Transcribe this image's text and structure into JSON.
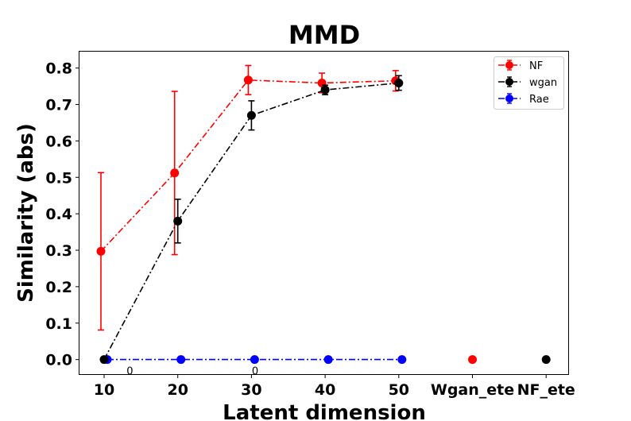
{
  "chart_data": {
    "type": "line",
    "title": "MMD",
    "xlabel": "Latent dimension",
    "ylabel": "Similarity (abs)",
    "categories": [
      "10",
      "20",
      "30",
      "40",
      "50",
      "Wgan_ete",
      "NF_ete"
    ],
    "yticks": [
      "0.0",
      "0.1",
      "0.2",
      "0.3",
      "0.4",
      "0.5",
      "0.6",
      "0.7",
      "0.8"
    ],
    "ylim": [
      -0.04,
      0.845
    ],
    "legend_position": "top-right",
    "grid": false,
    "series": [
      {
        "name": "NF",
        "color": "#ff0000",
        "linestyle": "dash-dot",
        "x": [
          10,
          20,
          30,
          40,
          50
        ],
        "y": [
          0.297,
          0.512,
          0.767,
          0.759,
          0.765
        ],
        "yerr": [
          0.216,
          0.224,
          0.04,
          0.027,
          0.028
        ]
      },
      {
        "name": "wgan",
        "color": "#000000",
        "linestyle": "dash-dot",
        "x": [
          10,
          20,
          30,
          40,
          50
        ],
        "y": [
          0.0,
          0.38,
          0.67,
          0.74,
          0.759
        ],
        "yerr": [
          0.0,
          0.06,
          0.04,
          0.013,
          0.02
        ]
      },
      {
        "name": "Rae",
        "color": "#0000ff",
        "linestyle": "dash-dot",
        "x": [
          10,
          20,
          30,
          40,
          50
        ],
        "y": [
          0.0,
          0.0,
          0.0,
          0.0,
          0.0
        ],
        "yerr": [
          0.0,
          0.0,
          0.0,
          0.0,
          0.0
        ]
      }
    ],
    "extra_points": [
      {
        "category": "Wgan_ete",
        "y": 0.0,
        "color": "#ff0000"
      },
      {
        "category": "NF_ete",
        "y": 0.0,
        "color": "#000000"
      }
    ],
    "annotations": [
      {
        "text": "0",
        "x": 13.5,
        "y": -0.03
      },
      {
        "text": "0",
        "x": 30.5,
        "y": -0.03
      }
    ]
  }
}
